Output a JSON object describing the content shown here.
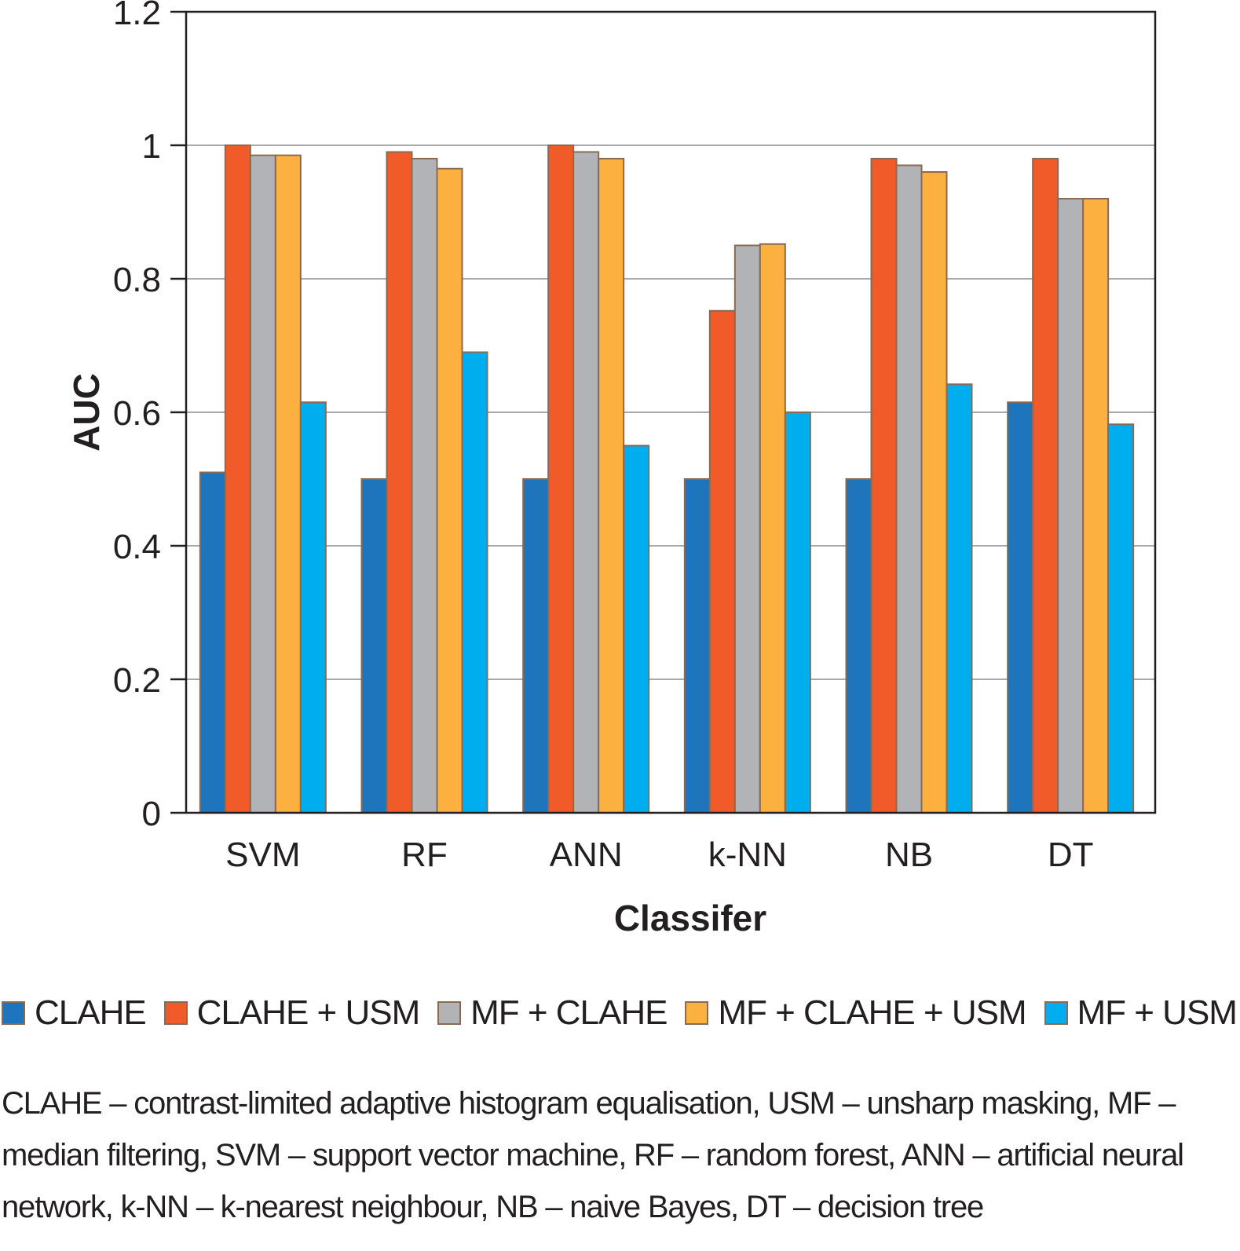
{
  "chart_data": {
    "type": "bar",
    "title": "",
    "xlabel": "Classifer",
    "ylabel": "AUC",
    "ylim": [
      0,
      1.2
    ],
    "yticks": [
      "0",
      "0.2",
      "0.4",
      "0.6",
      "0.8",
      "1",
      "1.2"
    ],
    "grid": "horizontal",
    "legend_position": "bottom",
    "categories": [
      "SVM",
      "RF",
      "ANN",
      "k-NN",
      "NB",
      "DT"
    ],
    "series": [
      {
        "name": "CLAHE",
        "color": "#1f75bb",
        "values": [
          0.51,
          0.5,
          0.5,
          0.5,
          0.5,
          0.615
        ]
      },
      {
        "name": "CLAHE + USM",
        "color": "#f15a29",
        "values": [
          1.0,
          0.99,
          1.0,
          0.752,
          0.98,
          0.98
        ]
      },
      {
        "name": "MF + CLAHE",
        "color": "#b1b3b6",
        "values": [
          0.985,
          0.98,
          0.99,
          0.85,
          0.97,
          0.92
        ]
      },
      {
        "name": "MF + CLAHE + USM",
        "color": "#fbb040",
        "values": [
          0.985,
          0.965,
          0.98,
          0.852,
          0.96,
          0.92
        ]
      },
      {
        "name": "MF + USM",
        "color": "#00aeef",
        "values": [
          0.615,
          0.69,
          0.55,
          0.6,
          0.642,
          0.582
        ]
      }
    ],
    "bar_edge_color": "#8a6a52",
    "gridline_color": "#a7a9ac"
  },
  "footnote": "CLAHE – contrast-limited adaptive histogram equalisation, USM – unsharp masking, MF – median filtering, SVM – support vector machine, RF – random forest, ANN – artificial neural network, k-NN – k-nearest neighbour, NB – naive Bayes, DT – decision tree"
}
